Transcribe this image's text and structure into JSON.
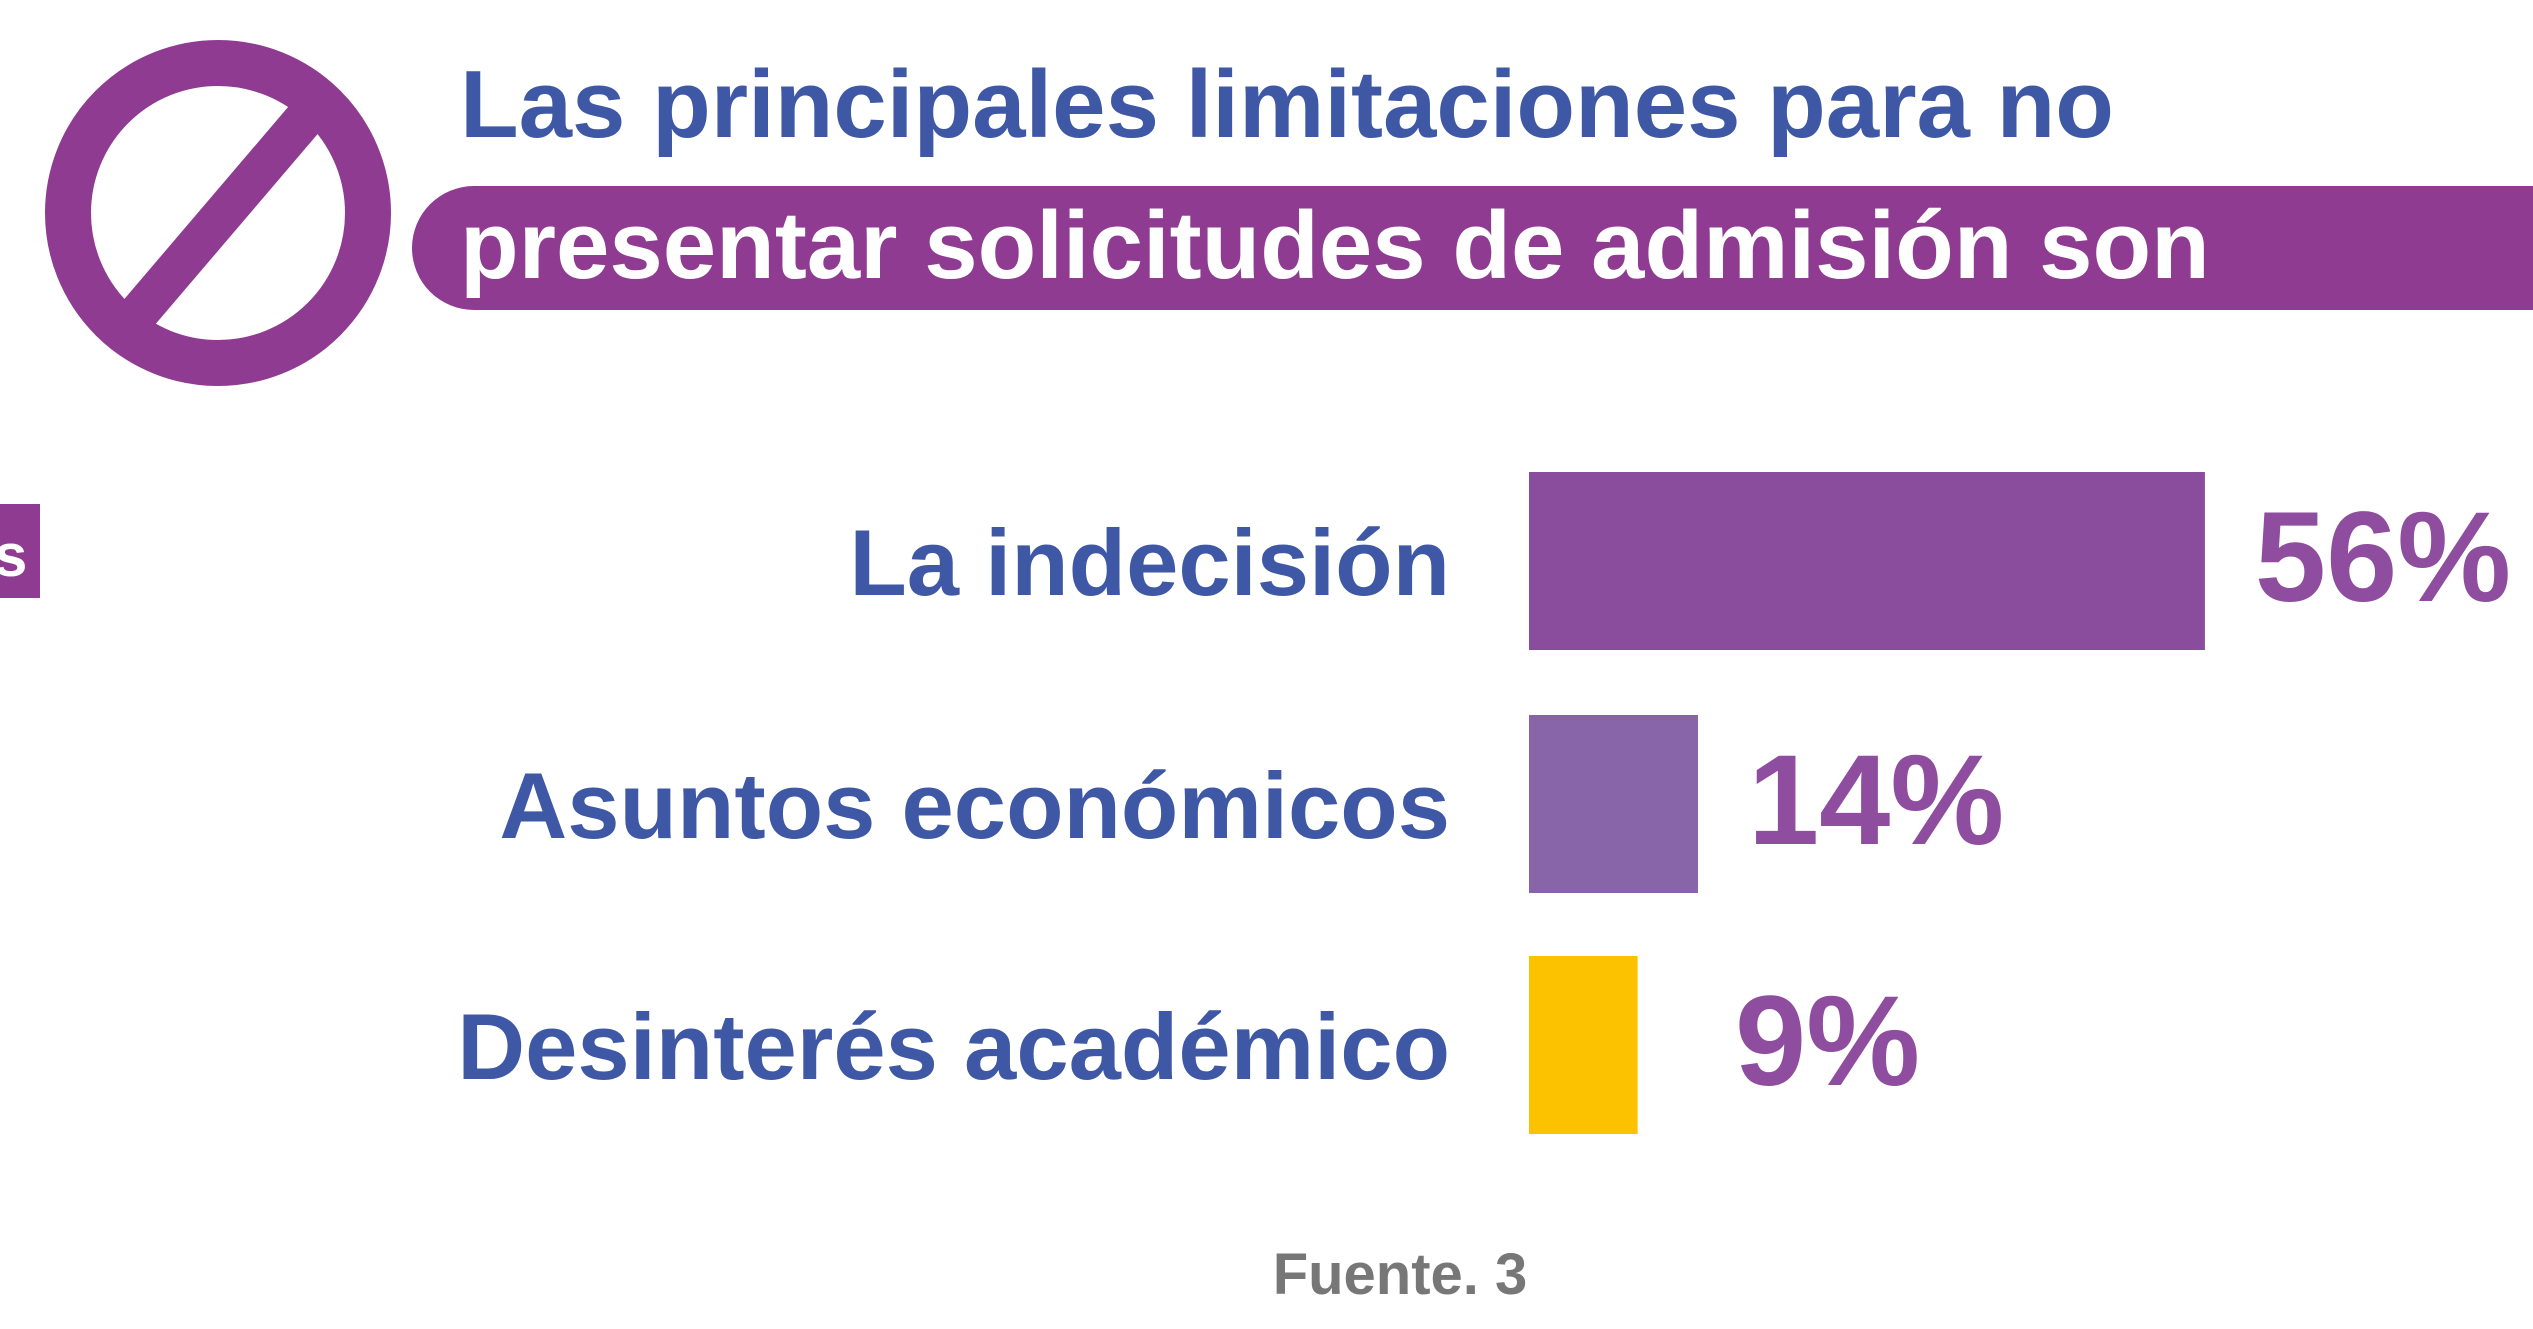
{
  "chart_data": {
    "type": "bar",
    "title": [
      "Las principales limitaciones para no",
      "presentar solicitudes de admisión son"
    ],
    "side_label": "s",
    "categories": [
      "La indecisión",
      "Asuntos económicos",
      "Desinterés académico"
    ],
    "values": [
      56,
      14,
      9
    ],
    "value_labels": [
      "56%",
      "14%",
      "9%"
    ],
    "colors": [
      "#8a4c9c",
      "#8765a8",
      "#fcc200"
    ],
    "source": "Fuente. 3"
  }
}
